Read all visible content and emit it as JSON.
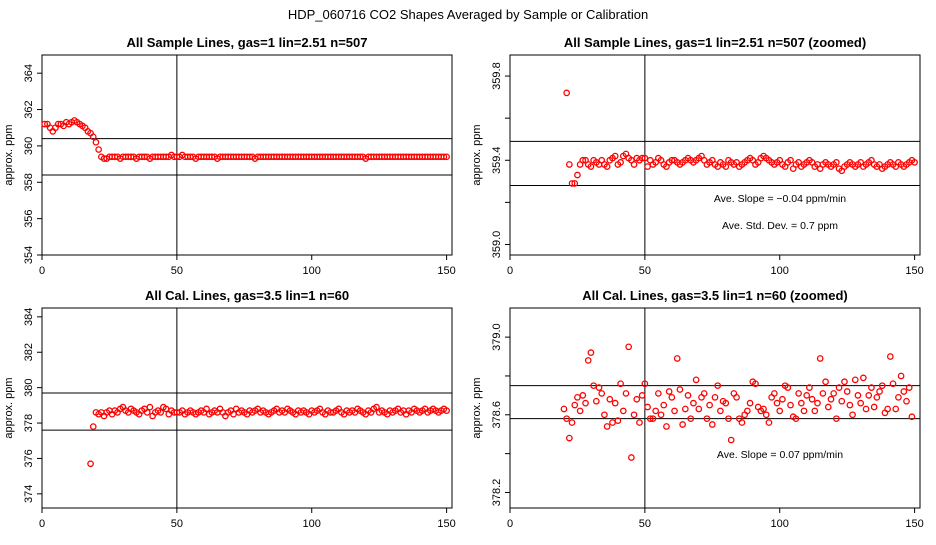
{
  "page_title": "HDP_060716  CO2 Shapes Averaged by Sample or Calibration",
  "colors": {
    "points": "#ff0000",
    "axes": "#000000"
  },
  "chart_data": [
    {
      "type": "scatter",
      "title": "All Sample Lines, gas=1 lin=2.51 n=507",
      "ylabel": "approx. ppm",
      "xlim": [
        0,
        152
      ],
      "ylim": [
        354,
        365
      ],
      "xticks": [
        0,
        50,
        100,
        150
      ],
      "yticks": [
        354,
        356,
        358,
        360,
        362,
        364
      ],
      "vline": 50,
      "hlines": [
        360.4,
        358.4
      ],
      "annotations": [],
      "x": [
        1,
        2,
        3,
        4,
        5,
        6,
        7,
        8,
        9,
        10,
        11,
        12,
        13,
        14,
        15,
        16,
        17,
        18,
        19,
        20,
        21,
        22,
        23,
        24,
        25,
        26,
        27,
        28,
        29,
        30,
        31,
        32,
        33,
        34,
        35,
        36,
        37,
        38,
        39,
        40,
        41,
        42,
        43,
        44,
        45,
        46,
        47,
        48,
        49,
        50,
        51,
        52,
        53,
        54,
        55,
        56,
        57,
        58,
        59,
        60,
        61,
        62,
        63,
        64,
        65,
        66,
        67,
        68,
        69,
        70,
        71,
        72,
        73,
        74,
        75,
        76,
        77,
        78,
        79,
        80,
        81,
        82,
        83,
        84,
        85,
        86,
        87,
        88,
        89,
        90,
        91,
        92,
        93,
        94,
        95,
        96,
        97,
        98,
        99,
        100,
        101,
        102,
        103,
        104,
        105,
        106,
        107,
        108,
        109,
        110,
        111,
        112,
        113,
        114,
        115,
        116,
        117,
        118,
        119,
        120,
        121,
        122,
        123,
        124,
        125,
        126,
        127,
        128,
        129,
        130,
        131,
        132,
        133,
        134,
        135,
        136,
        137,
        138,
        139,
        140,
        141,
        142,
        143,
        144,
        145,
        146,
        147,
        148,
        149,
        150
      ],
      "y": [
        361.2,
        361.2,
        361.0,
        360.8,
        361.0,
        361.2,
        361.2,
        361.1,
        361.3,
        361.2,
        361.3,
        361.4,
        361.3,
        361.2,
        361.1,
        361.0,
        360.8,
        360.7,
        360.5,
        360.2,
        359.8,
        359.4,
        359.3,
        359.3,
        359.4,
        359.4,
        359.4,
        359.4,
        359.3,
        359.4,
        359.4,
        359.4,
        359.4,
        359.4,
        359.3,
        359.4,
        359.4,
        359.4,
        359.4,
        359.3,
        359.4,
        359.4,
        359.4,
        359.4,
        359.4,
        359.4,
        359.4,
        359.5,
        359.4,
        359.4,
        359.4,
        359.5,
        359.4,
        359.4,
        359.4,
        359.4,
        359.3,
        359.4,
        359.4,
        359.4,
        359.4,
        359.4,
        359.4,
        359.4,
        359.3,
        359.4,
        359.4,
        359.4,
        359.4,
        359.4,
        359.4,
        359.4,
        359.4,
        359.4,
        359.4,
        359.4,
        359.4,
        359.4,
        359.3,
        359.4,
        359.4,
        359.4,
        359.4,
        359.4,
        359.4,
        359.4,
        359.4,
        359.4,
        359.4,
        359.4,
        359.4,
        359.4,
        359.4,
        359.4,
        359.4,
        359.4,
        359.4,
        359.4,
        359.4,
        359.4,
        359.4,
        359.4,
        359.4,
        359.4,
        359.4,
        359.4,
        359.4,
        359.4,
        359.4,
        359.4,
        359.4,
        359.4,
        359.4,
        359.4,
        359.4,
        359.4,
        359.4,
        359.4,
        359.4,
        359.3,
        359.4,
        359.4,
        359.4,
        359.4,
        359.4,
        359.4,
        359.4,
        359.4,
        359.4,
        359.4,
        359.4,
        359.4,
        359.4,
        359.4,
        359.4,
        359.4,
        359.4,
        359.4,
        359.4,
        359.4,
        359.4,
        359.4,
        359.4,
        359.4,
        359.4,
        359.4,
        359.4,
        359.4,
        359.4,
        359.4
      ]
    },
    {
      "type": "scatter",
      "title": "All Sample Lines, gas=1 lin=2.51 n=507 (zoomed)",
      "ylabel": "approx. ppm",
      "xlim": [
        0,
        152
      ],
      "ylim": [
        358.95,
        359.9
      ],
      "xticks": [
        0,
        50,
        100,
        150
      ],
      "yticks": [
        359.0,
        359.2,
        359.4,
        359.6,
        359.8
      ],
      "ytick_labels": [
        "359.0",
        "",
        "359.4",
        "",
        "359.8"
      ],
      "vline": 50,
      "hlines": [
        359.49,
        359.28
      ],
      "annotations": [
        "Ave. Slope =  −0.04  ppm/min",
        "Ave. Std. Dev. =  0.7  ppm"
      ],
      "x": [
        21,
        22,
        23,
        24,
        25,
        26,
        27,
        28,
        29,
        30,
        31,
        32,
        33,
        34,
        35,
        36,
        37,
        38,
        39,
        40,
        41,
        42,
        43,
        44,
        45,
        46,
        47,
        48,
        49,
        50,
        51,
        52,
        53,
        54,
        55,
        56,
        57,
        58,
        59,
        60,
        61,
        62,
        63,
        64,
        65,
        66,
        67,
        68,
        69,
        70,
        71,
        72,
        73,
        74,
        75,
        76,
        77,
        78,
        79,
        80,
        81,
        82,
        83,
        84,
        85,
        86,
        87,
        88,
        89,
        90,
        91,
        92,
        93,
        94,
        95,
        96,
        97,
        98,
        99,
        100,
        101,
        102,
        103,
        104,
        105,
        106,
        107,
        108,
        109,
        110,
        111,
        112,
        113,
        114,
        115,
        116,
        117,
        118,
        119,
        120,
        121,
        122,
        123,
        124,
        125,
        126,
        127,
        128,
        129,
        130,
        131,
        132,
        133,
        134,
        135,
        136,
        137,
        138,
        139,
        140,
        141,
        142,
        143,
        144,
        145,
        146,
        147,
        148,
        149,
        150
      ],
      "y": [
        359.72,
        359.38,
        359.29,
        359.29,
        359.33,
        359.38,
        359.4,
        359.4,
        359.38,
        359.37,
        359.4,
        359.39,
        359.38,
        359.4,
        359.38,
        359.37,
        359.4,
        359.41,
        359.42,
        359.38,
        359.39,
        359.42,
        359.43,
        359.41,
        359.4,
        359.38,
        359.41,
        359.4,
        359.41,
        359.41,
        359.37,
        359.4,
        359.38,
        359.39,
        359.41,
        359.4,
        359.38,
        359.37,
        359.39,
        359.4,
        359.4,
        359.39,
        359.38,
        359.39,
        359.4,
        359.41,
        359.4,
        359.39,
        359.4,
        359.41,
        359.42,
        359.4,
        359.38,
        359.39,
        359.4,
        359.38,
        359.37,
        359.39,
        359.38,
        359.37,
        359.4,
        359.39,
        359.38,
        359.39,
        359.37,
        359.38,
        359.39,
        359.4,
        359.41,
        359.4,
        359.38,
        359.39,
        359.41,
        359.42,
        359.41,
        359.4,
        359.39,
        359.38,
        359.39,
        359.4,
        359.38,
        359.37,
        359.39,
        359.4,
        359.36,
        359.38,
        359.39,
        359.37,
        359.38,
        359.39,
        359.4,
        359.39,
        359.37,
        359.38,
        359.36,
        359.38,
        359.39,
        359.38,
        359.37,
        359.38,
        359.39,
        359.36,
        359.35,
        359.37,
        359.38,
        359.39,
        359.38,
        359.37,
        359.38,
        359.39,
        359.37,
        359.38,
        359.39,
        359.4,
        359.38,
        359.37,
        359.38,
        359.36,
        359.37,
        359.38,
        359.39,
        359.38,
        359.37,
        359.39,
        359.38,
        359.37,
        359.38,
        359.39,
        359.4,
        359.39
      ]
    },
    {
      "type": "scatter",
      "title": "All Cal. Lines, gas=3.5 lin=1 n=60",
      "ylabel": "approx. ppm",
      "xlim": [
        0,
        152
      ],
      "ylim": [
        373.2,
        384.5
      ],
      "xticks": [
        0,
        50,
        100,
        150
      ],
      "yticks": [
        374,
        376,
        378,
        380,
        382,
        384
      ],
      "vline": 50,
      "hlines": [
        379.7,
        377.6
      ],
      "annotations": [],
      "x": [
        18,
        19,
        20,
        21,
        22,
        23,
        24,
        25,
        26,
        27,
        28,
        29,
        30,
        31,
        32,
        33,
        34,
        35,
        36,
        37,
        38,
        39,
        40,
        41,
        42,
        43,
        44,
        45,
        46,
        47,
        48,
        49,
        50,
        51,
        52,
        53,
        54,
        55,
        56,
        57,
        58,
        59,
        60,
        61,
        62,
        63,
        64,
        65,
        66,
        67,
        68,
        69,
        70,
        71,
        72,
        73,
        74,
        75,
        76,
        77,
        78,
        79,
        80,
        81,
        82,
        83,
        84,
        85,
        86,
        87,
        88,
        89,
        90,
        91,
        92,
        93,
        94,
        95,
        96,
        97,
        98,
        99,
        100,
        101,
        102,
        103,
        104,
        105,
        106,
        107,
        108,
        109,
        110,
        111,
        112,
        113,
        114,
        115,
        116,
        117,
        118,
        119,
        120,
        121,
        122,
        123,
        124,
        125,
        126,
        127,
        128,
        129,
        130,
        131,
        132,
        133,
        134,
        135,
        136,
        137,
        138,
        139,
        140,
        141,
        142,
        143,
        144,
        145,
        146,
        147,
        148,
        149,
        150
      ],
      "y": [
        375.7,
        377.8,
        378.6,
        378.5,
        378.6,
        378.4,
        378.6,
        378.7,
        378.5,
        378.7,
        378.6,
        378.8,
        378.9,
        378.7,
        378.6,
        378.8,
        378.7,
        378.6,
        378.5,
        378.7,
        378.8,
        378.6,
        378.9,
        378.4,
        378.6,
        378.7,
        378.6,
        378.9,
        378.8,
        378.5,
        378.7,
        378.6,
        378.6,
        378.6,
        378.7,
        378.5,
        378.6,
        378.7,
        378.6,
        378.5,
        378.6,
        378.7,
        378.6,
        378.8,
        378.5,
        378.6,
        378.7,
        378.6,
        378.8,
        378.6,
        378.4,
        378.6,
        378.7,
        378.5,
        378.8,
        378.6,
        378.7,
        378.6,
        378.5,
        378.7,
        378.6,
        378.7,
        378.8,
        378.6,
        378.7,
        378.6,
        378.5,
        378.6,
        378.7,
        378.8,
        378.6,
        378.7,
        378.6,
        378.8,
        378.7,
        378.6,
        378.5,
        378.7,
        378.6,
        378.7,
        378.6,
        378.5,
        378.7,
        378.6,
        378.7,
        378.8,
        378.6,
        378.5,
        378.7,
        378.6,
        378.6,
        378.7,
        378.8,
        378.6,
        378.5,
        378.7,
        378.6,
        378.7,
        378.6,
        378.8,
        378.7,
        378.6,
        378.5,
        378.7,
        378.6,
        378.8,
        378.9,
        378.6,
        378.7,
        378.6,
        378.5,
        378.7,
        378.6,
        378.7,
        378.8,
        378.6,
        378.7,
        378.5,
        378.7,
        378.6,
        378.8,
        378.7,
        378.6,
        378.7,
        378.8,
        378.6,
        378.7,
        378.8,
        378.7,
        378.6,
        378.7,
        378.8,
        378.7
      ]
    },
    {
      "type": "scatter",
      "title": "All Cal. Lines, gas=3.5 lin=1 n=60 (zoomed)",
      "ylabel": "approx. ppm",
      "xlim": [
        0,
        152
      ],
      "ylim": [
        378.12,
        379.15
      ],
      "xticks": [
        0,
        50,
        100,
        150
      ],
      "yticks": [
        378.2,
        378.4,
        378.6,
        378.8,
        379.0
      ],
      "ytick_labels": [
        "378.2",
        "",
        "378.6",
        "",
        "379.0"
      ],
      "vline": 50,
      "hlines": [
        378.75,
        378.58
      ],
      "annotations": [
        "Ave. Slope =  0.07  ppm/min"
      ],
      "x": [
        20,
        21,
        22,
        23,
        24,
        25,
        26,
        27,
        28,
        29,
        30,
        31,
        32,
        33,
        34,
        35,
        36,
        37,
        38,
        39,
        40,
        41,
        42,
        43,
        44,
        45,
        46,
        47,
        48,
        49,
        50,
        51,
        52,
        53,
        54,
        55,
        56,
        57,
        58,
        59,
        60,
        61,
        62,
        63,
        64,
        65,
        66,
        67,
        68,
        69,
        70,
        71,
        72,
        73,
        74,
        75,
        76,
        77,
        78,
        79,
        80,
        81,
        82,
        83,
        84,
        85,
        86,
        87,
        88,
        89,
        90,
        91,
        92,
        93,
        94,
        95,
        96,
        97,
        98,
        99,
        100,
        101,
        102,
        103,
        104,
        105,
        106,
        107,
        108,
        109,
        110,
        111,
        112,
        113,
        114,
        115,
        116,
        117,
        118,
        119,
        120,
        121,
        122,
        123,
        124,
        125,
        126,
        127,
        128,
        129,
        130,
        131,
        132,
        133,
        134,
        135,
        136,
        137,
        138,
        139,
        140,
        141,
        142,
        143,
        144,
        145,
        146,
        147,
        148,
        149
      ],
      "y": [
        378.63,
        378.58,
        378.48,
        378.56,
        378.65,
        378.69,
        378.62,
        378.7,
        378.66,
        378.88,
        378.92,
        378.75,
        378.67,
        378.74,
        378.71,
        378.6,
        378.54,
        378.68,
        378.56,
        378.66,
        378.57,
        378.76,
        378.62,
        378.71,
        378.95,
        378.38,
        378.6,
        378.68,
        378.56,
        378.7,
        378.76,
        378.64,
        378.58,
        378.58,
        378.62,
        378.71,
        378.6,
        378.65,
        378.54,
        378.72,
        378.69,
        378.62,
        378.89,
        378.73,
        378.55,
        378.63,
        378.7,
        378.58,
        378.66,
        378.78,
        378.63,
        378.69,
        378.71,
        378.58,
        378.65,
        378.55,
        378.69,
        378.75,
        378.62,
        378.67,
        378.66,
        378.58,
        378.47,
        378.71,
        378.69,
        378.58,
        378.56,
        378.6,
        378.62,
        378.66,
        378.77,
        378.76,
        378.64,
        378.62,
        378.63,
        378.6,
        378.56,
        378.69,
        378.71,
        378.66,
        378.62,
        378.68,
        378.75,
        378.74,
        378.65,
        378.59,
        378.58,
        378.71,
        378.66,
        378.62,
        378.7,
        378.74,
        378.68,
        378.62,
        378.66,
        378.89,
        378.71,
        378.77,
        378.64,
        378.68,
        378.71,
        378.58,
        378.74,
        378.67,
        378.77,
        378.72,
        378.65,
        378.6,
        378.78,
        378.7,
        378.66,
        378.79,
        378.63,
        378.7,
        378.74,
        378.64,
        378.69,
        378.72,
        378.75,
        378.61,
        378.63,
        378.9,
        378.76,
        378.63,
        378.69,
        378.8,
        378.72,
        378.67,
        378.74,
        378.59
      ]
    }
  ]
}
